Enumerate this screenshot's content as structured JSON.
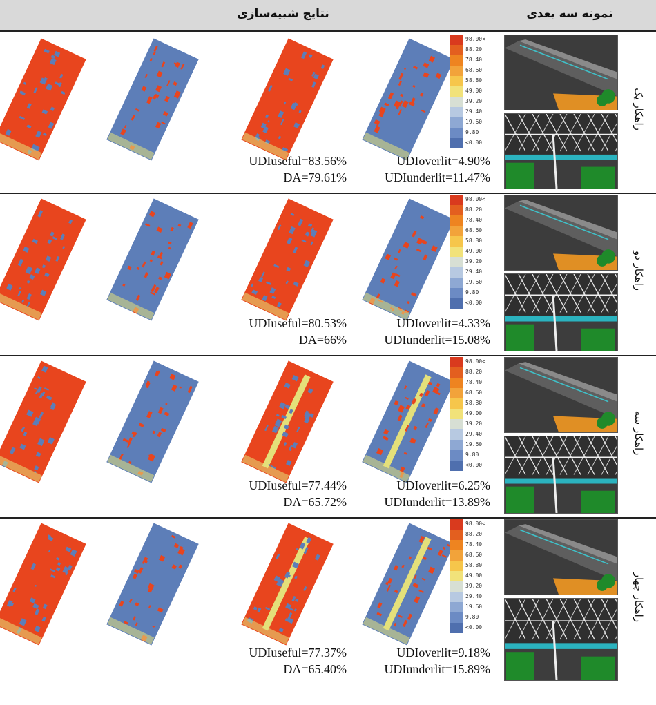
{
  "header": {
    "simulation_results": "نتایج شبیه‌سازی",
    "model_3d": "نمونه سه بعدی"
  },
  "colors": {
    "red": "#e8451e",
    "blue": "#5d7eb8",
    "yellow": "#e4e07a",
    "render_roof": "#5e5e5e",
    "render_wall": "#e08f24",
    "tree": "#1f8a2a"
  },
  "scale_labels": [
    "98.00<",
    "88.20",
    "78.40",
    "68.60",
    "58.80",
    "49.00",
    "39.20",
    "29.40",
    "19.60",
    "9.80",
    "<0.00"
  ],
  "scale_colors": [
    "#d93a1e",
    "#e35f1f",
    "#ee8420",
    "#f2a33a",
    "#f6c64b",
    "#f1e27a",
    "#d7dfd4",
    "#b7c9e1",
    "#8ea8d3",
    "#6c8bc4",
    "#4f6fae"
  ],
  "rows": [
    {
      "label": "راهکار یک",
      "udi_useful": "UDIuseful=83.56%",
      "da": "DA=79.61%",
      "udi_overlit": "UDIoverlit=4.90%",
      "udi_underlit": "UDIunderlit=11.47%"
    },
    {
      "label": "راهکار دو",
      "udi_useful": "UDIuseful=80.53%",
      "da": "DA=66%",
      "udi_overlit": "UDIoverlit=4.33%",
      "udi_underlit": "UDIunderlit=15.08%"
    },
    {
      "label": "راهکار سه",
      "udi_useful": "UDIuseful=77.44%",
      "da": "DA=65.72%",
      "udi_overlit": "UDIoverlit=6.25%",
      "udi_underlit": "UDIunderlit=13.89%"
    },
    {
      "label": "راهکار چهار",
      "udi_useful": "UDIuseful=77.37%",
      "da": "DA=65.40%",
      "udi_overlit": "UDIoverlit=9.18%",
      "udi_underlit": "UDIunderlit=15.89%"
    }
  ]
}
